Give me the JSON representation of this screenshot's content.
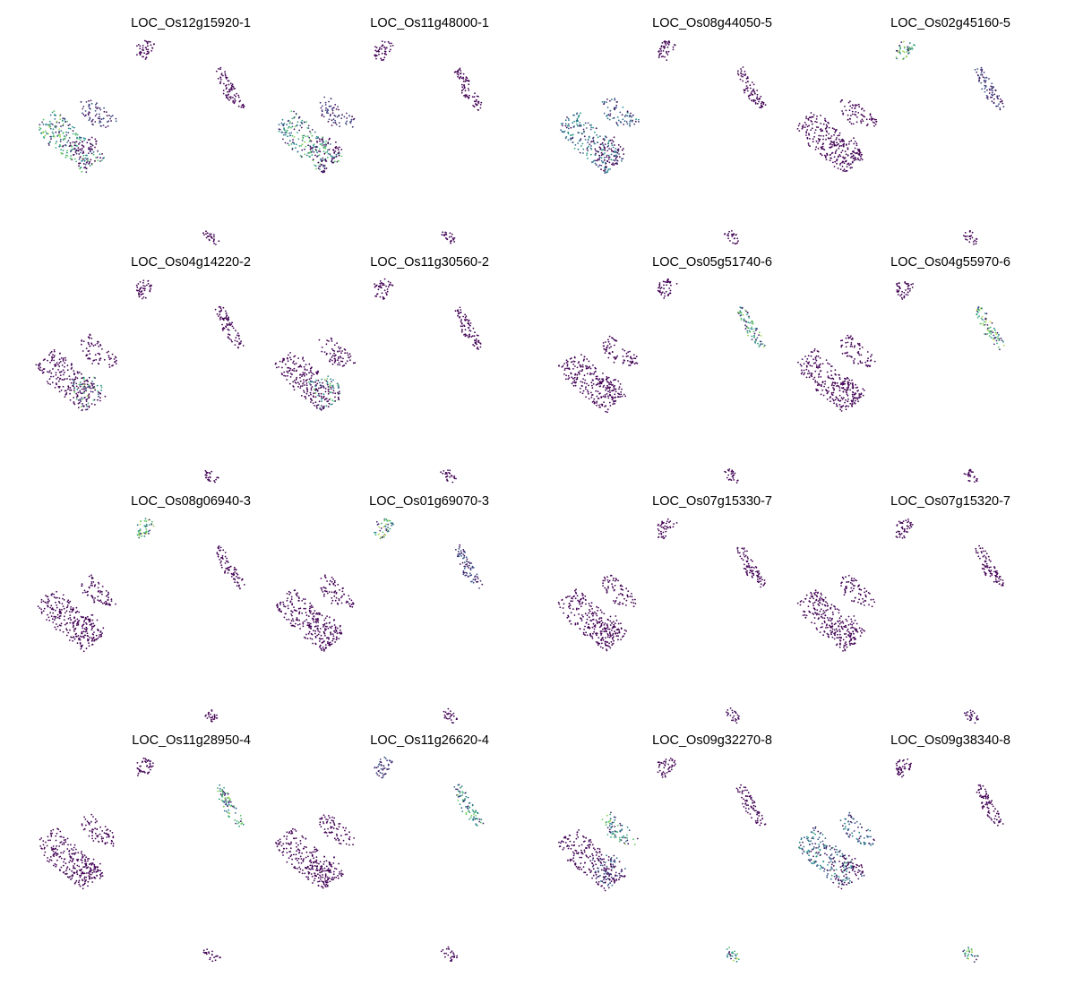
{
  "chart_data": {
    "type": "scatter",
    "layout": "4x4 grid of UMAP feature plots",
    "axes_visible": false,
    "grid": false,
    "legend": "none",
    "colormap": [
      "#440154",
      "#3b528b",
      "#21918c",
      "#5ec962",
      "#fde725"
    ],
    "panels": [
      {
        "title": "LOC_Os12g15920-1",
        "hot": {
          "left": 0.85,
          "mid": 0.3
        }
      },
      {
        "title": "LOC_Os11g48000-1",
        "hot": {
          "left": 0.8,
          "mid": 0.25
        }
      },
      {
        "title": "LOC_Os08g44050-5",
        "hot": {
          "left": 0.6,
          "topright": 0.5,
          "mid": 0.2
        }
      },
      {
        "title": "LOC_Os02g45160-5",
        "hot": {
          "top": 0.9,
          "right": 0.3
        }
      },
      {
        "title": "LOC_Os04g14220-2",
        "hot": {
          "bottom": 0.9
        }
      },
      {
        "title": "LOC_Os11g30560-2",
        "hot": {
          "bottom": 0.8
        }
      },
      {
        "title": "LOC_Os05g51740-6",
        "hot": {
          "rightlow": 0.9
        }
      },
      {
        "title": "LOC_Os04g55970-6",
        "hot": {
          "rightlow": 0.95
        }
      },
      {
        "title": "LOC_Os08g06940-3",
        "hot": {
          "top": 0.95
        }
      },
      {
        "title": "LOC_Os01g69070-3",
        "hot": {
          "top": 0.9,
          "right": 0.3
        }
      },
      {
        "title": "LOC_Os07g15330-7",
        "hot": {
          "tiny": 0.05
        }
      },
      {
        "title": "LOC_Os07g15320-7",
        "hot": {
          "tiny": 0.05
        }
      },
      {
        "title": "LOC_Os11g28950-4",
        "hot": {
          "righttop": 0.9
        }
      },
      {
        "title": "LOC_Os11g26620-4",
        "hot": {
          "right": 0.85,
          "top": 0.3
        }
      },
      {
        "title": "LOC_Os09g32270-8",
        "hot": {
          "topright": 0.85,
          "tiny": 0.9,
          "bottom": 0.4
        }
      },
      {
        "title": "LOC_Os09g38340-8",
        "hot": {
          "left": 0.6,
          "topright": 0.5,
          "tiny": 0.9
        }
      }
    ]
  }
}
